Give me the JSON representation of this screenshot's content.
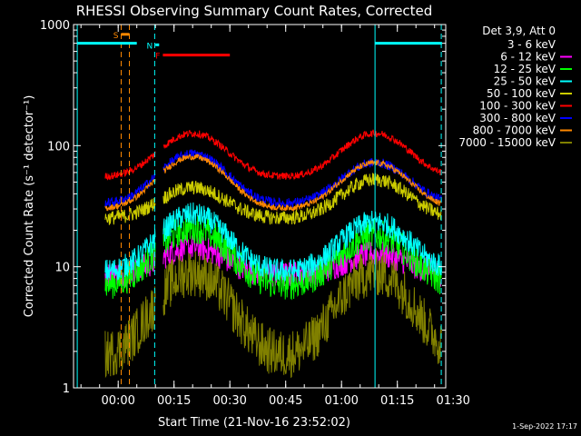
{
  "chart_data": {
    "type": "line",
    "title": "RHESSI Observing Summary Count Rates, Corrected",
    "xlabel": "Start Time (21-Nov-16 23:52:02)",
    "ylabel": "Corrected Count Rate (s⁻¹ detector⁻¹)",
    "x_start_offset_min": -12,
    "x_range_min": [
      -12,
      88
    ],
    "x_ticks": [
      {
        "t": 0,
        "label": "00:00"
      },
      {
        "t": 15,
        "label": "00:15"
      },
      {
        "t": 30,
        "label": "00:30"
      },
      {
        "t": 45,
        "label": "00:45"
      },
      {
        "t": 60,
        "label": "01:00"
      },
      {
        "t": 75,
        "label": "01:15"
      },
      {
        "t": 90,
        "label": "01:30"
      }
    ],
    "y_scale": "log",
    "ylim": [
      1,
      1000
    ],
    "y_ticks": [
      {
        "v": 1,
        "label": "1"
      },
      {
        "v": 10,
        "label": "10"
      },
      {
        "v": 100,
        "label": "100"
      },
      {
        "v": 1000,
        "label": "1000"
      }
    ],
    "legend_header": "Det 3,9, Att 0",
    "legend_position": "right",
    "series": [
      {
        "name": "3 - 6 keV",
        "color": "#000000",
        "base": 18,
        "amp1": 1.7,
        "amp2": 1.45,
        "noise": 0.14
      },
      {
        "name": "6 - 12 keV",
        "color": "#ff00ff",
        "base": 8.5,
        "amp1": 1.7,
        "amp2": 1.5,
        "noise": 0.22
      },
      {
        "name": "12 - 25 keV",
        "color": "#00ff00",
        "base": 7,
        "amp1": 3,
        "amp2": 2.6,
        "noise": 0.26
      },
      {
        "name": "25 - 50 keV",
        "color": "#00ffff",
        "base": 9,
        "amp1": 3,
        "amp2": 2.6,
        "noise": 0.2
      },
      {
        "name": "50 - 100 keV",
        "color": "#cccc00",
        "base": 25,
        "amp1": 1.8,
        "amp2": 2.1,
        "noise": 0.12
      },
      {
        "name": "100 - 300 keV",
        "color": "#ff0000",
        "base": 55,
        "amp1": 2.3,
        "amp2": 2.3,
        "noise": 0.06
      },
      {
        "name": "300 - 800 keV",
        "color": "#0000ff",
        "base": 33,
        "amp1": 2.6,
        "amp2": 2.2,
        "noise": 0.08
      },
      {
        "name": "800 - 7000 keV",
        "color": "#ff8800",
        "base": 30,
        "amp1": 2.7,
        "amp2": 2.4,
        "noise": 0.05
      },
      {
        "name": "7000 - 15000 keV",
        "color": "#808000",
        "base": 1.8,
        "amp1": 5,
        "amp2": 5,
        "noise": 0.4
      }
    ],
    "data_gaps_min": [
      [
        -12,
        -3.5
      ],
      [
        10,
        12
      ],
      [
        87,
        88
      ]
    ],
    "vertical_lines": [
      {
        "t": -11,
        "color": "#00ffff",
        "style": "solid"
      },
      {
        "t": 0.8,
        "color": "#ff8800",
        "style": "dashed"
      },
      {
        "t": 3,
        "color": "#ff8800",
        "style": "dashed"
      },
      {
        "t": 9.8,
        "color": "#00ffff",
        "style": "dashed"
      },
      {
        "t": 69,
        "color": "#00ffff",
        "style": "solid"
      },
      {
        "t": 86.8,
        "color": "#00ffff",
        "style": "dashed"
      }
    ],
    "flag_bars": [
      {
        "label": "",
        "color": "#00ffff",
        "t0": -11,
        "t1": 5,
        "value": 700
      },
      {
        "label": "S",
        "color": "#ff8800",
        "t0": 0.8,
        "t1": 3,
        "value": 830
      },
      {
        "label": "N",
        "color": "#00ffff",
        "t0": 10,
        "t1": 11,
        "value": 680
      },
      {
        "label": "F",
        "color": "#ff0000",
        "t0": 12,
        "t1": 30,
        "value": 560
      },
      {
        "label": "",
        "color": "#00ffff",
        "t0": 69,
        "t1": 87,
        "value": 700
      }
    ]
  },
  "footer": {
    "date": "1-Sep-2022 17:17"
  }
}
